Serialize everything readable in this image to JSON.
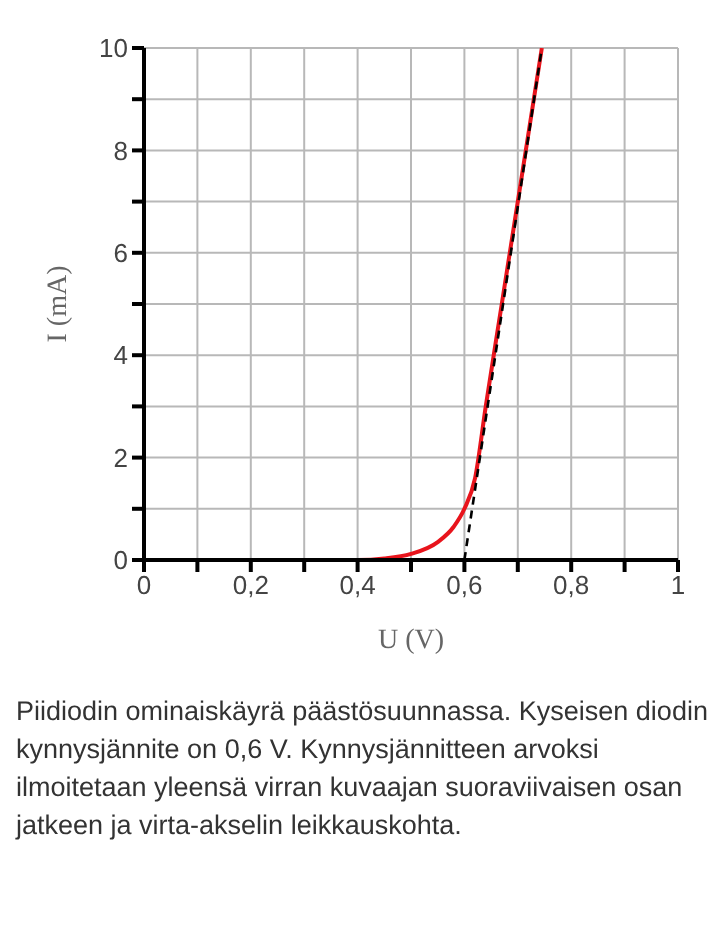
{
  "chart_data": {
    "type": "line",
    "xlabel": "U (V)",
    "ylabel": "I (mA)",
    "xlim": [
      0,
      1
    ],
    "ylim": [
      0,
      10
    ],
    "xticks": [
      0,
      {
        "value": 0.1,
        "label": null
      },
      {
        "value": 0.2,
        "label": "0,2"
      },
      {
        "value": 0.3,
        "label": null
      },
      {
        "value": 0.4,
        "label": "0,4"
      },
      {
        "value": 0.5,
        "label": null
      },
      {
        "value": 0.6,
        "label": "0,6"
      },
      {
        "value": 0.7,
        "label": null
      },
      {
        "value": 0.8,
        "label": "0,8"
      },
      {
        "value": 0.9,
        "label": null
      },
      1
    ],
    "yticks": [
      0,
      {
        "value": 1,
        "label": null
      },
      2,
      {
        "value": 3,
        "label": null
      },
      4,
      {
        "value": 5,
        "label": null
      },
      6,
      {
        "value": 7,
        "label": null
      },
      8,
      {
        "value": 9,
        "label": null
      },
      10
    ],
    "grid": true,
    "marker": "none",
    "series": [
      {
        "color": "#e8141c",
        "line_style": "solid",
        "x": [
          0,
          0.4,
          0.45,
          0.5,
          0.55,
          0.58,
          0.6,
          0.62,
          0.64,
          0.67,
          0.7,
          0.745
        ],
        "values": [
          0,
          0,
          0.03,
          0.12,
          0.35,
          0.65,
          1.0,
          1.6,
          3.0,
          5.0,
          7.0,
          10
        ]
      },
      {
        "color": "#000000",
        "line_style": "dashed",
        "x": [
          0.6,
          0.745
        ],
        "values": [
          0,
          10
        ]
      }
    ],
    "annotations": [
      "Piidiodin ominaiskäyrä päästösuunnassa. Kyseisen diodin kynnysjännite on 0,6 V. Kynnysjännitteen arvoksi ilmoitetaan yleensä virran kuvaajan suoraviivaisen osan jatkeen ja virta-akselin leikkauskohta."
    ]
  }
}
